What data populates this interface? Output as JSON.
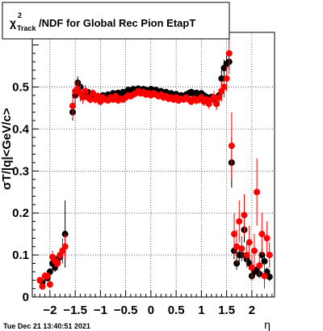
{
  "chart_data": {
    "type": "scatter",
    "title": "/NDF for Global Rec Pion EtapT",
    "title_symbol": "χ",
    "title_superscript": "2",
    "title_subscript": "Track",
    "xlabel": "η",
    "ylabel": "σT/|q|<GeV/c>",
    "xlim": [
      -2.35,
      2.45
    ],
    "ylim": [
      0,
      0.63
    ],
    "xticks": [
      -2,
      -1.5,
      -1,
      -0.5,
      0,
      0.5,
      1,
      1.5,
      2
    ],
    "xtick_labels": [
      "−2",
      "−1.5",
      "−1",
      "−0.5",
      "0",
      "0.5",
      "1",
      "1.5",
      "2"
    ],
    "yticks": [
      0,
      0.1,
      0.2,
      0.3,
      0.4,
      0.5
    ],
    "ytick_labels": [
      "0",
      "0.1",
      "0.2",
      "0.3",
      "0.4",
      "0.5"
    ],
    "grid": true,
    "series": [
      {
        "color": "#000000",
        "points": [
          {
            "x": -2.15,
            "y": 0.035,
            "e": 0.005
          },
          {
            "x": -2.05,
            "y": 0.045,
            "e": 0.005
          },
          {
            "x": -2.0,
            "y": 0.06,
            "e": 0.008
          },
          {
            "x": -1.95,
            "y": 0.08,
            "e": 0.01
          },
          {
            "x": -1.9,
            "y": 0.07,
            "e": 0.01
          },
          {
            "x": -1.85,
            "y": 0.09,
            "e": 0.01
          },
          {
            "x": -1.8,
            "y": 0.095,
            "e": 0.015
          },
          {
            "x": -1.75,
            "y": 0.11,
            "e": 0.02
          },
          {
            "x": -1.7,
            "y": 0.15,
            "e": 0.08
          },
          {
            "x": -1.55,
            "y": 0.44,
            "e": 0.02
          },
          {
            "x": -1.5,
            "y": 0.48,
            "e": 0.02
          },
          {
            "x": -1.45,
            "y": 0.51,
            "e": 0.015
          },
          {
            "x": -1.4,
            "y": 0.5,
            "e": 0.01
          },
          {
            "x": -1.35,
            "y": 0.48,
            "e": 0.008
          },
          {
            "x": -1.3,
            "y": 0.485,
            "e": 0.008
          },
          {
            "x": -1.25,
            "y": 0.488,
            "e": 0.006
          },
          {
            "x": -1.2,
            "y": 0.48,
            "e": 0.006
          },
          {
            "x": -1.15,
            "y": 0.485,
            "e": 0.006
          },
          {
            "x": -1.1,
            "y": 0.475,
            "e": 0.006
          },
          {
            "x": -1.05,
            "y": 0.478,
            "e": 0.006
          },
          {
            "x": -1.0,
            "y": 0.476,
            "e": 0.006
          },
          {
            "x": -0.95,
            "y": 0.48,
            "e": 0.005
          },
          {
            "x": -0.9,
            "y": 0.478,
            "e": 0.005
          },
          {
            "x": -0.85,
            "y": 0.482,
            "e": 0.005
          },
          {
            "x": -0.8,
            "y": 0.477,
            "e": 0.005
          },
          {
            "x": -0.75,
            "y": 0.485,
            "e": 0.005
          },
          {
            "x": -0.7,
            "y": 0.48,
            "e": 0.005
          },
          {
            "x": -0.65,
            "y": 0.486,
            "e": 0.005
          },
          {
            "x": -0.6,
            "y": 0.48,
            "e": 0.005
          },
          {
            "x": -0.55,
            "y": 0.488,
            "e": 0.005
          },
          {
            "x": -0.5,
            "y": 0.485,
            "e": 0.005
          },
          {
            "x": -0.45,
            "y": 0.493,
            "e": 0.005
          },
          {
            "x": -0.4,
            "y": 0.49,
            "e": 0.005
          },
          {
            "x": -0.35,
            "y": 0.495,
            "e": 0.005
          },
          {
            "x": -0.3,
            "y": 0.493,
            "e": 0.005
          },
          {
            "x": -0.25,
            "y": 0.496,
            "e": 0.005
          },
          {
            "x": -0.2,
            "y": 0.49,
            "e": 0.005
          },
          {
            "x": -0.15,
            "y": 0.495,
            "e": 0.005
          },
          {
            "x": -0.1,
            "y": 0.493,
            "e": 0.005
          },
          {
            "x": -0.05,
            "y": 0.49,
            "e": 0.005
          },
          {
            "x": 0.0,
            "y": 0.495,
            "e": 0.005
          },
          {
            "x": 0.05,
            "y": 0.49,
            "e": 0.005
          },
          {
            "x": 0.1,
            "y": 0.493,
            "e": 0.005
          },
          {
            "x": 0.15,
            "y": 0.488,
            "e": 0.005
          },
          {
            "x": 0.2,
            "y": 0.49,
            "e": 0.005
          },
          {
            "x": 0.25,
            "y": 0.485,
            "e": 0.005
          },
          {
            "x": 0.3,
            "y": 0.488,
            "e": 0.005
          },
          {
            "x": 0.35,
            "y": 0.483,
            "e": 0.005
          },
          {
            "x": 0.4,
            "y": 0.485,
            "e": 0.005
          },
          {
            "x": 0.45,
            "y": 0.48,
            "e": 0.005
          },
          {
            "x": 0.5,
            "y": 0.483,
            "e": 0.005
          },
          {
            "x": 0.55,
            "y": 0.478,
            "e": 0.005
          },
          {
            "x": 0.6,
            "y": 0.48,
            "e": 0.005
          },
          {
            "x": 0.65,
            "y": 0.478,
            "e": 0.005
          },
          {
            "x": 0.7,
            "y": 0.482,
            "e": 0.005
          },
          {
            "x": 0.75,
            "y": 0.485,
            "e": 0.005
          },
          {
            "x": 0.8,
            "y": 0.488,
            "e": 0.005
          },
          {
            "x": 0.85,
            "y": 0.482,
            "e": 0.005
          },
          {
            "x": 0.9,
            "y": 0.486,
            "e": 0.006
          },
          {
            "x": 0.95,
            "y": 0.48,
            "e": 0.006
          },
          {
            "x": 1.0,
            "y": 0.485,
            "e": 0.006
          },
          {
            "x": 1.05,
            "y": 0.48,
            "e": 0.006
          },
          {
            "x": 1.1,
            "y": 0.476,
            "e": 0.006
          },
          {
            "x": 1.15,
            "y": 0.472,
            "e": 0.007
          },
          {
            "x": 1.2,
            "y": 0.476,
            "e": 0.008
          },
          {
            "x": 1.25,
            "y": 0.47,
            "e": 0.01
          },
          {
            "x": 1.3,
            "y": 0.46,
            "e": 0.01
          },
          {
            "x": 1.35,
            "y": 0.48,
            "e": 0.015
          },
          {
            "x": 1.4,
            "y": 0.52,
            "e": 0.02
          },
          {
            "x": 1.45,
            "y": 0.545,
            "e": 0.02
          },
          {
            "x": 1.5,
            "y": 0.555,
            "e": 0.02
          },
          {
            "x": 1.55,
            "y": 0.56,
            "e": 0.02
          },
          {
            "x": 1.6,
            "y": 0.32,
            "e": 0.06
          },
          {
            "x": 1.65,
            "y": 0.11,
            "e": 0.02
          },
          {
            "x": 1.7,
            "y": 0.08,
            "e": 0.015
          },
          {
            "x": 1.75,
            "y": 0.1,
            "e": 0.015
          },
          {
            "x": 1.8,
            "y": 0.1,
            "e": 0.015
          },
          {
            "x": 1.85,
            "y": 0.16,
            "e": 0.03
          },
          {
            "x": 1.9,
            "y": 0.09,
            "e": 0.015
          },
          {
            "x": 1.95,
            "y": 0.08,
            "e": 0.015
          },
          {
            "x": 2.0,
            "y": 0.05,
            "e": 0.01
          },
          {
            "x": 2.05,
            "y": 0.06,
            "e": 0.01
          },
          {
            "x": 2.1,
            "y": 0.065,
            "e": 0.01
          },
          {
            "x": 2.15,
            "y": 0.055,
            "e": 0.01
          },
          {
            "x": 2.2,
            "y": 0.1,
            "e": 0.015
          },
          {
            "x": 2.25,
            "y": 0.085,
            "e": 0.015
          },
          {
            "x": 2.3,
            "y": 0.06,
            "e": 0.01
          },
          {
            "x": 2.35,
            "y": 0.048,
            "e": 0.01
          }
        ]
      },
      {
        "color": "#ff0000",
        "points": [
          {
            "x": -2.2,
            "y": 0.04,
            "e": 0.008
          },
          {
            "x": -2.15,
            "y": 0.025,
            "e": 0.005
          },
          {
            "x": -2.1,
            "y": 0.05,
            "e": 0.01
          },
          {
            "x": -2.05,
            "y": 0.05,
            "e": 0.01
          },
          {
            "x": -2.0,
            "y": 0.03,
            "e": 0.008
          },
          {
            "x": -1.95,
            "y": 0.095,
            "e": 0.015
          },
          {
            "x": -1.9,
            "y": 0.085,
            "e": 0.015
          },
          {
            "x": -1.85,
            "y": 0.08,
            "e": 0.015
          },
          {
            "x": -1.8,
            "y": 0.1,
            "e": 0.015
          },
          {
            "x": -1.75,
            "y": 0.11,
            "e": 0.03
          },
          {
            "x": -1.7,
            "y": 0.12,
            "e": 0.03
          },
          {
            "x": -1.55,
            "y": 0.455,
            "e": 0.03
          },
          {
            "x": -1.5,
            "y": 0.49,
            "e": 0.025
          },
          {
            "x": -1.45,
            "y": 0.495,
            "e": 0.02
          },
          {
            "x": -1.4,
            "y": 0.485,
            "e": 0.02
          },
          {
            "x": -1.35,
            "y": 0.475,
            "e": 0.015
          },
          {
            "x": -1.3,
            "y": 0.49,
            "e": 0.015
          },
          {
            "x": -1.25,
            "y": 0.475,
            "e": 0.01
          },
          {
            "x": -1.2,
            "y": 0.47,
            "e": 0.01
          },
          {
            "x": -1.15,
            "y": 0.485,
            "e": 0.01
          },
          {
            "x": -1.1,
            "y": 0.47,
            "e": 0.01
          },
          {
            "x": -1.05,
            "y": 0.478,
            "e": 0.01
          },
          {
            "x": -1.0,
            "y": 0.465,
            "e": 0.008
          },
          {
            "x": -0.95,
            "y": 0.475,
            "e": 0.008
          },
          {
            "x": -0.9,
            "y": 0.47,
            "e": 0.008
          },
          {
            "x": -0.85,
            "y": 0.468,
            "e": 0.008
          },
          {
            "x": -0.8,
            "y": 0.475,
            "e": 0.008
          },
          {
            "x": -0.75,
            "y": 0.47,
            "e": 0.008
          },
          {
            "x": -0.7,
            "y": 0.478,
            "e": 0.008
          },
          {
            "x": -0.65,
            "y": 0.468,
            "e": 0.008
          },
          {
            "x": -0.6,
            "y": 0.472,
            "e": 0.008
          },
          {
            "x": -0.55,
            "y": 0.47,
            "e": 0.008
          },
          {
            "x": -0.5,
            "y": 0.475,
            "e": 0.008
          },
          {
            "x": -0.45,
            "y": 0.48,
            "e": 0.008
          },
          {
            "x": -0.4,
            "y": 0.478,
            "e": 0.008
          },
          {
            "x": -0.35,
            "y": 0.482,
            "e": 0.008
          },
          {
            "x": -0.3,
            "y": 0.485,
            "e": 0.008
          },
          {
            "x": -0.25,
            "y": 0.49,
            "e": 0.008
          },
          {
            "x": -0.2,
            "y": 0.485,
            "e": 0.008
          },
          {
            "x": -0.15,
            "y": 0.488,
            "e": 0.008
          },
          {
            "x": -0.1,
            "y": 0.482,
            "e": 0.008
          },
          {
            "x": -0.05,
            "y": 0.485,
            "e": 0.008
          },
          {
            "x": 0.0,
            "y": 0.48,
            "e": 0.008
          },
          {
            "x": 0.05,
            "y": 0.485,
            "e": 0.008
          },
          {
            "x": 0.1,
            "y": 0.482,
            "e": 0.008
          },
          {
            "x": 0.15,
            "y": 0.478,
            "e": 0.008
          },
          {
            "x": 0.2,
            "y": 0.482,
            "e": 0.008
          },
          {
            "x": 0.25,
            "y": 0.475,
            "e": 0.008
          },
          {
            "x": 0.3,
            "y": 0.478,
            "e": 0.008
          },
          {
            "x": 0.35,
            "y": 0.472,
            "e": 0.008
          },
          {
            "x": 0.4,
            "y": 0.475,
            "e": 0.008
          },
          {
            "x": 0.45,
            "y": 0.47,
            "e": 0.008
          },
          {
            "x": 0.5,
            "y": 0.475,
            "e": 0.008
          },
          {
            "x": 0.55,
            "y": 0.468,
            "e": 0.008
          },
          {
            "x": 0.6,
            "y": 0.472,
            "e": 0.008
          },
          {
            "x": 0.65,
            "y": 0.47,
            "e": 0.008
          },
          {
            "x": 0.7,
            "y": 0.475,
            "e": 0.008
          },
          {
            "x": 0.75,
            "y": 0.47,
            "e": 0.008
          },
          {
            "x": 0.8,
            "y": 0.465,
            "e": 0.008
          },
          {
            "x": 0.85,
            "y": 0.472,
            "e": 0.008
          },
          {
            "x": 0.9,
            "y": 0.468,
            "e": 0.01
          },
          {
            "x": 0.95,
            "y": 0.47,
            "e": 0.01
          },
          {
            "x": 1.0,
            "y": 0.475,
            "e": 0.01
          },
          {
            "x": 1.05,
            "y": 0.465,
            "e": 0.01
          },
          {
            "x": 1.1,
            "y": 0.47,
            "e": 0.01
          },
          {
            "x": 1.15,
            "y": 0.46,
            "e": 0.012
          },
          {
            "x": 1.2,
            "y": 0.47,
            "e": 0.012
          },
          {
            "x": 1.25,
            "y": 0.475,
            "e": 0.015
          },
          {
            "x": 1.3,
            "y": 0.46,
            "e": 0.015
          },
          {
            "x": 1.35,
            "y": 0.475,
            "e": 0.02
          },
          {
            "x": 1.4,
            "y": 0.49,
            "e": 0.025
          },
          {
            "x": 1.45,
            "y": 0.5,
            "e": 0.025
          },
          {
            "x": 1.5,
            "y": 0.52,
            "e": 0.03
          },
          {
            "x": 1.55,
            "y": 0.58,
            "e": 0.05
          },
          {
            "x": 1.6,
            "y": 0.36,
            "e": 0.08
          },
          {
            "x": 1.65,
            "y": 0.15,
            "e": 0.05
          },
          {
            "x": 1.7,
            "y": 0.12,
            "e": 0.04
          },
          {
            "x": 1.75,
            "y": 0.18,
            "e": 0.05
          },
          {
            "x": 1.8,
            "y": 0.115,
            "e": 0.03
          },
          {
            "x": 1.85,
            "y": 0.195,
            "e": 0.05
          },
          {
            "x": 1.9,
            "y": 0.1,
            "e": 0.03
          },
          {
            "x": 1.95,
            "y": 0.13,
            "e": 0.04
          },
          {
            "x": 2.0,
            "y": 0.07,
            "e": 0.03
          },
          {
            "x": 2.05,
            "y": 0.11,
            "e": 0.04
          },
          {
            "x": 2.1,
            "y": 0.25,
            "e": 0.08
          },
          {
            "x": 2.15,
            "y": 0.075,
            "e": 0.03
          },
          {
            "x": 2.2,
            "y": 0.15,
            "e": 0.05
          },
          {
            "x": 2.25,
            "y": 0.05,
            "e": 0.03
          },
          {
            "x": 2.3,
            "y": 0.14,
            "e": 0.04
          },
          {
            "x": 2.35,
            "y": 0.1,
            "e": 0.03
          }
        ]
      }
    ]
  },
  "footer": {
    "timestamp": "Tue Dec 21 13:40:51 2021"
  }
}
